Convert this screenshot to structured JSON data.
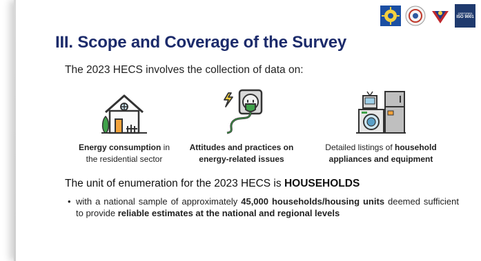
{
  "header": {
    "title": "III. Scope and Coverage of the Survey",
    "iso_text": "ISO 9001"
  },
  "intro": "The 2023 HECS involves the collection of data on:",
  "items": [
    {
      "icon": "house-icon",
      "bold": "Energy consumption",
      "rest1": " in",
      "line2": "the residential sector"
    },
    {
      "icon": "plug-icon",
      "bold": "Attitudes and practices on",
      "line2": "energy-related issues"
    },
    {
      "icon": "appliances-icon",
      "pre": "Detailed listings of ",
      "bold": "household",
      "line2": "appliances and equipment"
    }
  ],
  "unit": {
    "text": "The unit of enumeration for the 2023 HECS is ",
    "bold": "HOUSEHOLDS"
  },
  "bullet": {
    "marker": "•",
    "t1": "with a national sample of approximately ",
    "b1": "45,000 households/housing units",
    "t2": " deemed sufficient to provide ",
    "b2": "reliable estimates at the national and regional levels"
  },
  "colors": {
    "title": "#1c2b6b",
    "accent_green": "#3fa14a",
    "accent_orange": "#f2a23a"
  }
}
